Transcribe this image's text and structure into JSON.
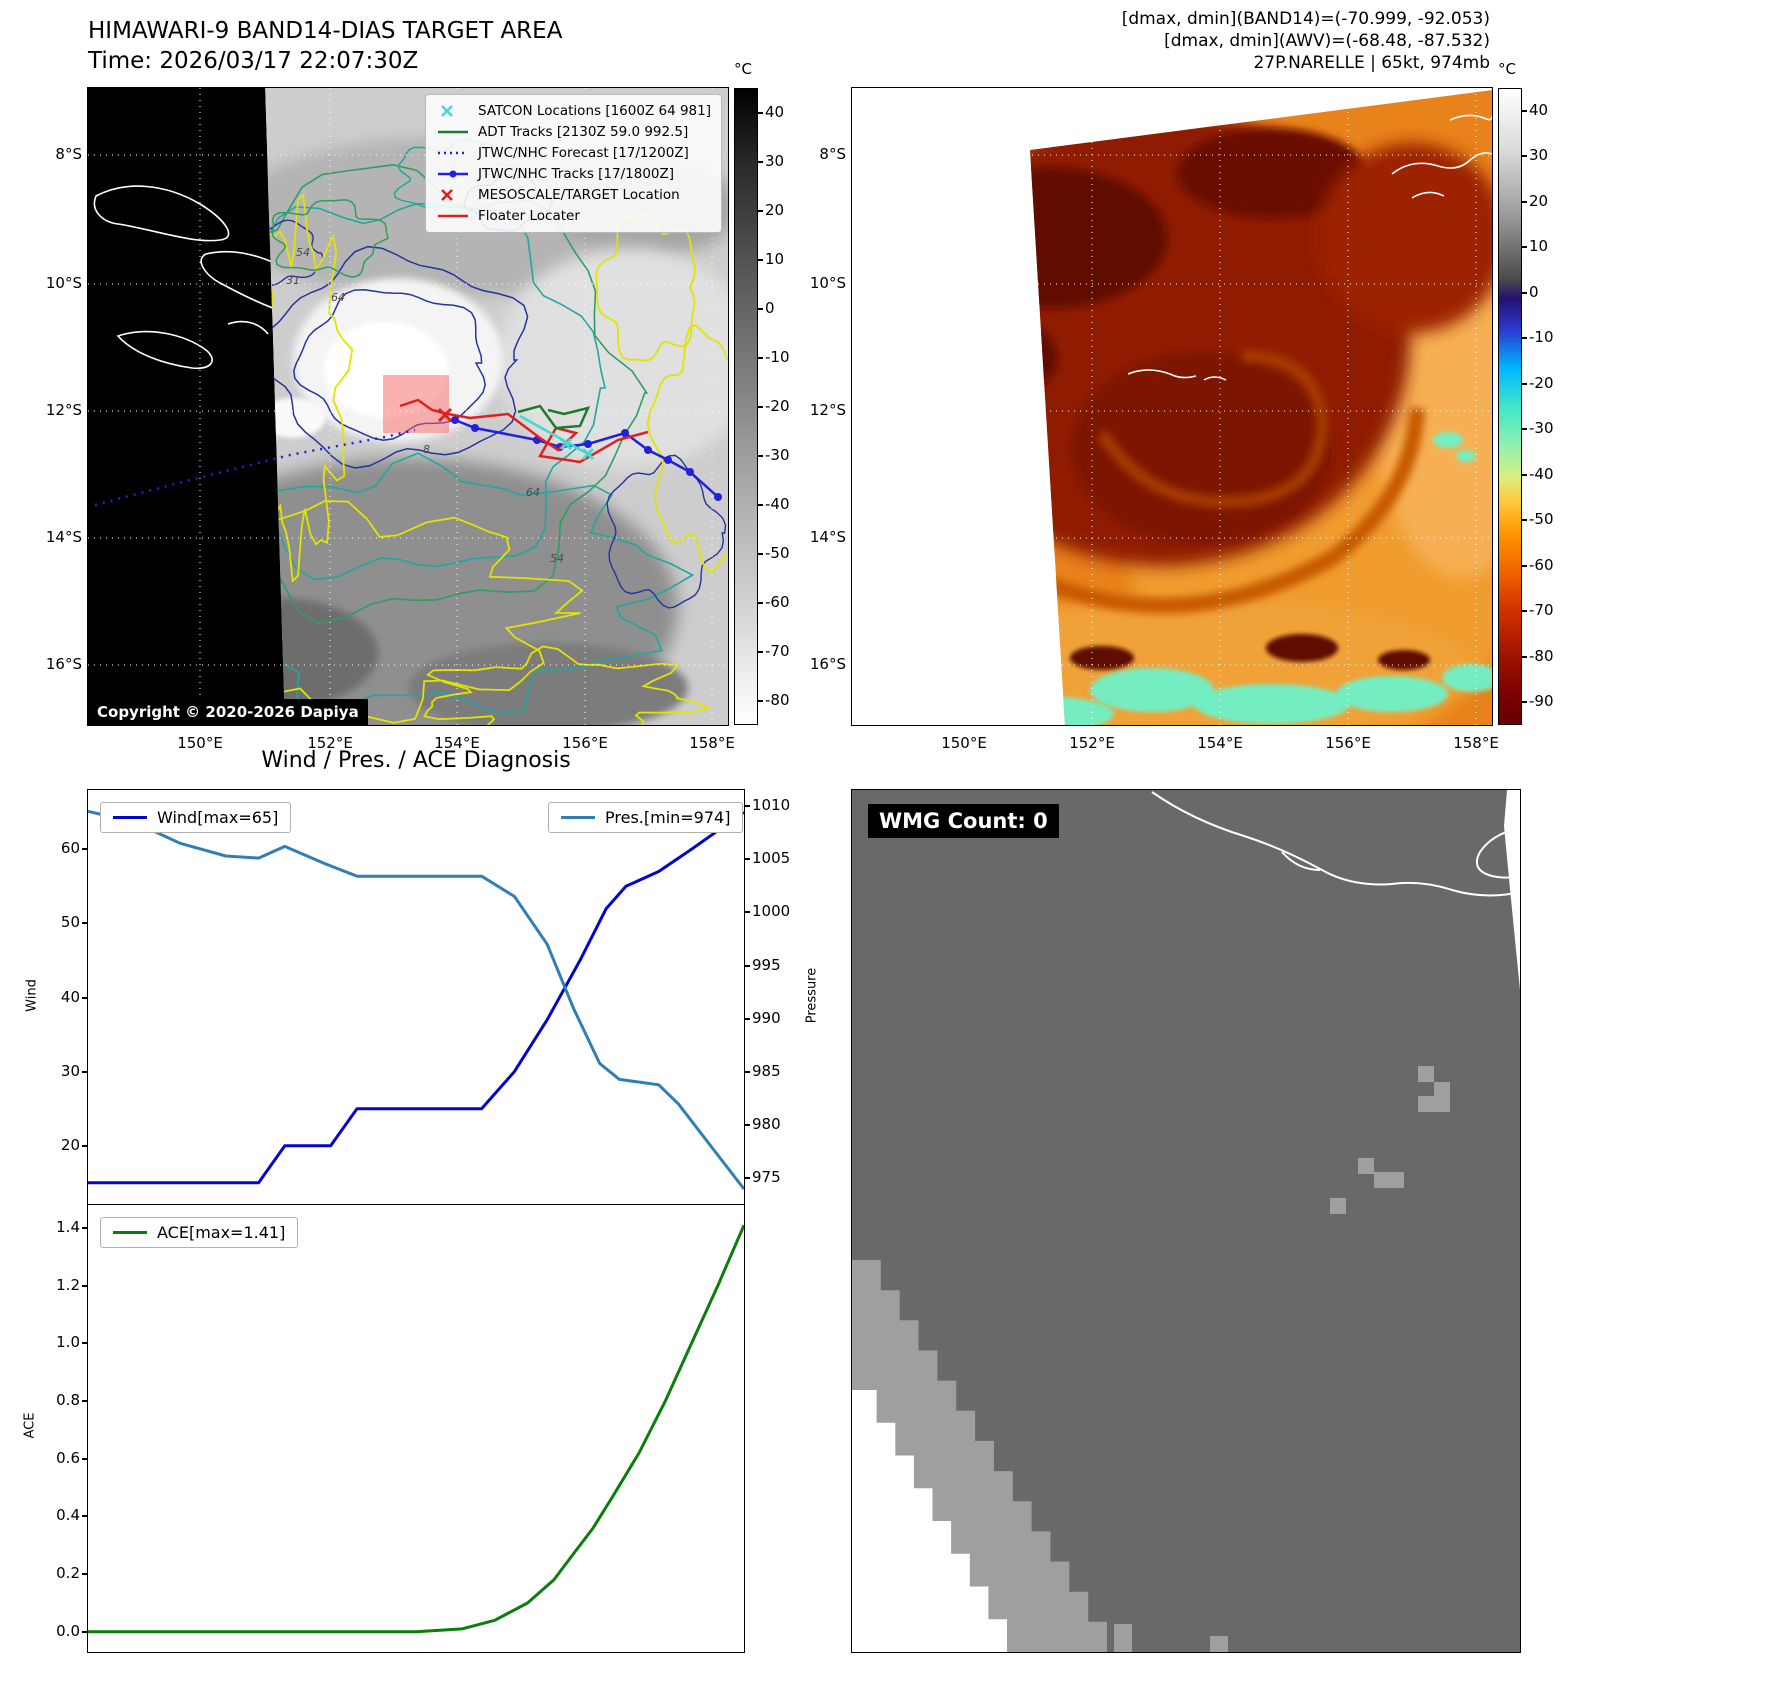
{
  "band14_panel": {
    "title": "HIMAWARI-9 BAND14-DIAS TARGET AREA",
    "time_line": "Time: 2026/03/17 22:07:30Z",
    "copyright": "Copyright © 2020-2026 Dapiya",
    "legend": [
      {
        "label": "SATCON Locations [1600Z 64 981]",
        "style": "x",
        "color": "#45d9cf"
      },
      {
        "label": "ADT Tracks [2130Z 59.0 992.5]",
        "style": "line",
        "color": "#1a7d2e"
      },
      {
        "label": "JTWC/NHC Forecast [17/1200Z]",
        "style": "dotted",
        "color": "#2020dd"
      },
      {
        "label": "JTWC/NHC Tracks [17/1800Z]",
        "style": "line-dot",
        "color": "#2020dd"
      },
      {
        "label": "MESOSCALE/TARGET Location",
        "style": "x",
        "color": "#e02020"
      },
      {
        "label": "Floater Locater",
        "style": "line",
        "color": "#e02020"
      }
    ],
    "lat_ticks": [
      "8°S",
      "10°S",
      "12°S",
      "14°S",
      "16°S"
    ],
    "lon_ticks": [
      "150°E",
      "152°E",
      "154°E",
      "156°E",
      "158°E"
    ],
    "colorbar_unit": "°C",
    "colorbar_ticks": [
      40,
      30,
      20,
      10,
      0,
      -10,
      -20,
      -30,
      -40,
      -50,
      -60,
      -70,
      -80
    ],
    "contour_labels": [
      "31",
      "54",
      "64",
      "8",
      "64",
      "54"
    ]
  },
  "awv_panel": {
    "info_lines": [
      "[dmax, dmin](BAND14)=(-70.999, -92.053)",
      "[dmax, dmin](AWV)=(-68.48, -87.532)",
      "27P.NARELLE | 65kt, 974mb"
    ],
    "lat_ticks": [
      "8°S",
      "10°S",
      "12°S",
      "14°S",
      "16°S"
    ],
    "lon_ticks": [
      "150°E",
      "152°E",
      "154°E",
      "156°E",
      "158°E"
    ],
    "colorbar_unit": "°C",
    "colorbar_ticks": [
      40,
      30,
      20,
      10,
      0,
      -10,
      -20,
      -30,
      -40,
      -50,
      -60,
      -70,
      -80,
      -90
    ]
  },
  "wmg_panel": {
    "label": "WMG Count: 0"
  },
  "chart_data": [
    {
      "type": "line",
      "title": "Wind / Pres. / ACE Diagnosis",
      "ylabel": "Wind",
      "y2label": "Pressure",
      "ylim": [
        12,
        68
      ],
      "y2lim": [
        972.5,
        1011.5
      ],
      "yticks": [
        20,
        30,
        40,
        50,
        60
      ],
      "y2ticks": [
        975,
        980,
        985,
        990,
        995,
        1000,
        1005,
        1010
      ],
      "legend_position": "top",
      "grid": false,
      "series": [
        {
          "name": "Wind[max=65]",
          "axis": "left",
          "color": "#0505c8",
          "points": [
            [
              0,
              15
            ],
            [
              0.26,
              15
            ],
            [
              0.3,
              20
            ],
            [
              0.37,
              20
            ],
            [
              0.41,
              25
            ],
            [
              0.6,
              25
            ],
            [
              0.65,
              30
            ],
            [
              0.7,
              37
            ],
            [
              0.75,
              45
            ],
            [
              0.79,
              52
            ],
            [
              0.82,
              55
            ],
            [
              0.87,
              57
            ],
            [
              0.92,
              60
            ],
            [
              1,
              65
            ]
          ]
        },
        {
          "name": "Pres.[min=974]",
          "axis": "right",
          "color": "#2e7fb8",
          "points": [
            [
              0,
              1009.5
            ],
            [
              0.07,
              1008.5
            ],
            [
              0.14,
              1006.5
            ],
            [
              0.21,
              1005.3
            ],
            [
              0.26,
              1005.1
            ],
            [
              0.3,
              1006.2
            ],
            [
              0.36,
              1004.6
            ],
            [
              0.41,
              1003.4
            ],
            [
              0.6,
              1003.4
            ],
            [
              0.65,
              1001.5
            ],
            [
              0.7,
              997
            ],
            [
              0.74,
              991
            ],
            [
              0.78,
              985.8
            ],
            [
              0.81,
              984.3
            ],
            [
              0.87,
              983.8
            ],
            [
              0.9,
              982
            ],
            [
              0.95,
              978
            ],
            [
              1,
              974
            ]
          ]
        }
      ]
    },
    {
      "type": "line",
      "ylabel": "ACE",
      "ylim": [
        -0.07,
        1.48
      ],
      "yticks": [
        0.0,
        0.2,
        0.4,
        0.6,
        0.8,
        1.0,
        1.2,
        1.4
      ],
      "grid": false,
      "series": [
        {
          "name": "ACE[max=1.41]",
          "axis": "left",
          "color": "#0a7d0a",
          "points": [
            [
              0,
              0
            ],
            [
              0.5,
              0
            ],
            [
              0.57,
              0.01
            ],
            [
              0.62,
              0.04
            ],
            [
              0.67,
              0.1
            ],
            [
              0.71,
              0.18
            ],
            [
              0.74,
              0.27
            ],
            [
              0.77,
              0.36
            ],
            [
              0.8,
              0.47
            ],
            [
              0.84,
              0.62
            ],
            [
              0.88,
              0.8
            ],
            [
              0.92,
              1.0
            ],
            [
              0.96,
              1.2
            ],
            [
              1,
              1.41
            ]
          ]
        }
      ]
    }
  ]
}
